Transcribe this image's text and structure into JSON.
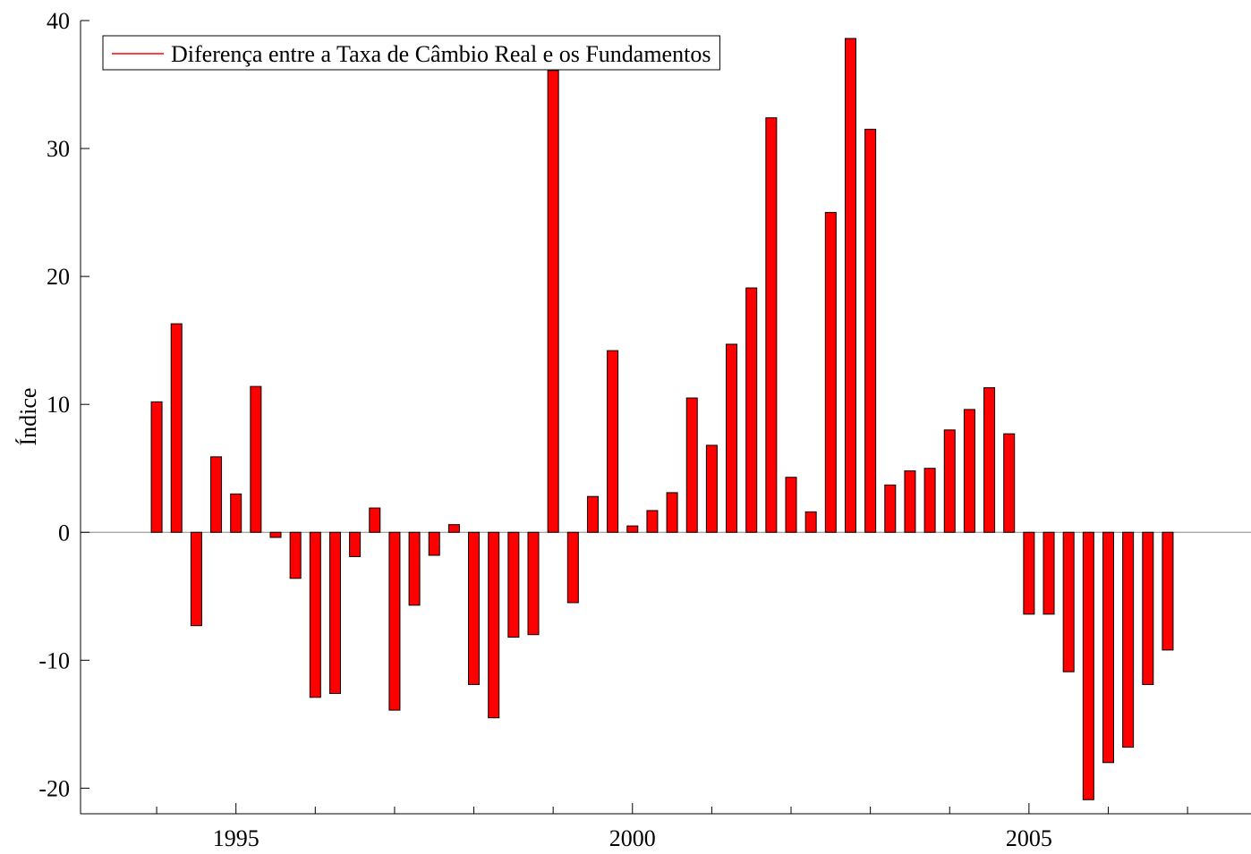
{
  "chart_data": {
    "type": "bar",
    "y_label": "Índice",
    "x": [
      1994,
      1994.25,
      1994.5,
      1994.75,
      1995,
      1995.25,
      1995.5,
      1995.75,
      1996,
      1996.25,
      1996.5,
      1996.75,
      1997,
      1997.25,
      1997.5,
      1997.75,
      1998,
      1998.25,
      1998.5,
      1998.75,
      1999,
      1999.25,
      1999.5,
      1999.75,
      2000,
      2000.25,
      2000.5,
      2000.75,
      2001,
      2001.25,
      2001.5,
      2001.75,
      2002,
      2002.25,
      2002.5,
      2002.75,
      2003,
      2003.25,
      2003.5,
      2003.75,
      2004,
      2004.25,
      2004.5,
      2004.75,
      2005,
      2005.25,
      2005.5,
      2005.75,
      2006,
      2006.25,
      2006.5,
      2006.75
    ],
    "series": [
      {
        "name": "Diferença entre a Taxa de Câmbio Real e os Fundamentos",
        "color": "#ff0000",
        "values": [
          10.2,
          16.3,
          -7.3,
          5.9,
          3.0,
          11.4,
          -0.4,
          -3.6,
          -12.9,
          -12.6,
          -1.9,
          1.9,
          -13.9,
          -5.7,
          -1.8,
          0.6,
          -11.9,
          -14.5,
          -8.2,
          -8.0,
          36.1,
          -5.5,
          2.8,
          14.2,
          0.5,
          1.7,
          3.1,
          10.5,
          6.8,
          14.7,
          19.1,
          32.4,
          4.3,
          1.6,
          25.0,
          38.6,
          31.5,
          3.7,
          4.8,
          5.0,
          8.0,
          9.6,
          11.3,
          7.7,
          -6.4,
          -6.4,
          -10.9,
          -20.9,
          -18.0,
          -16.8,
          -11.9,
          -9.2
        ]
      }
    ],
    "xlim": [
      1993.04,
      2007.8
    ],
    "xticks": [
      1995,
      2000,
      2005
    ],
    "xminorticks": [
      1994,
      1996,
      1997,
      1998,
      1999,
      2001,
      2002,
      2003,
      2004,
      2006,
      2007
    ],
    "ylim": [
      -22,
      40
    ],
    "yticks": [
      -20,
      -10,
      0,
      10,
      20,
      30,
      40
    ],
    "legend": "top-left"
  }
}
